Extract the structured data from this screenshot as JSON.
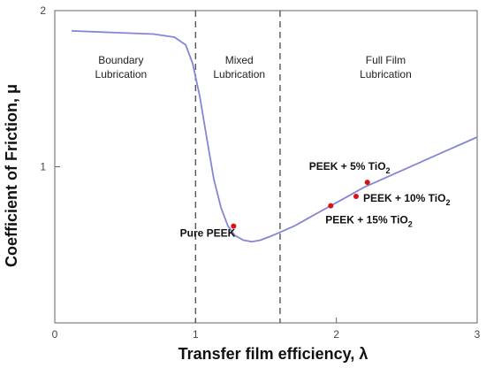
{
  "chart_data": {
    "type": "line",
    "xlabel": "Transfer film efficiency, λ",
    "ylabel": "Coefficient of Friction, μ",
    "xlim": [
      0,
      3
    ],
    "ylim": [
      0,
      2
    ],
    "x_ticks": [
      "0",
      "1",
      "2",
      "3"
    ],
    "y_ticks": [
      "1",
      "2"
    ],
    "grid": false,
    "colors": {
      "curve": "#8585d6",
      "points": "#dd1111",
      "axis": "#666666",
      "boundary": "#555555"
    },
    "curve": {
      "x": [
        0.12,
        0.4,
        0.7,
        0.85,
        0.93,
        0.98,
        1.03,
        1.08,
        1.13,
        1.18,
        1.23,
        1.28,
        1.34,
        1.4,
        1.46,
        1.52,
        1.6,
        1.7,
        1.8,
        1.9,
        2.0,
        2.1,
        2.2,
        2.3,
        2.4,
        2.5,
        2.6,
        2.7,
        2.8,
        2.9,
        3.0
      ],
      "y": [
        1.87,
        1.86,
        1.85,
        1.83,
        1.78,
        1.66,
        1.45,
        1.18,
        0.92,
        0.74,
        0.62,
        0.56,
        0.53,
        0.52,
        0.53,
        0.55,
        0.58,
        0.62,
        0.67,
        0.72,
        0.77,
        0.82,
        0.87,
        0.91,
        0.95,
        0.99,
        1.03,
        1.07,
        1.11,
        1.15,
        1.19
      ]
    },
    "regions": [
      {
        "lines": [
          "Boundary",
          "Lubrication"
        ],
        "x": 0.47
      },
      {
        "lines": [
          "Mixed",
          "Lubrication"
        ],
        "x": 1.31
      },
      {
        "lines": [
          "Full Film",
          "Lubrication"
        ],
        "x": 2.35
      }
    ],
    "boundaries_x": [
      1.0,
      1.6
    ],
    "points": [
      {
        "label": "Pure PEEK",
        "x": 1.27,
        "y": 0.62
      },
      {
        "label": "PEEK + 5% TiO2",
        "x": 2.22,
        "y": 0.9
      },
      {
        "label": "PEEK + 10% TiO2",
        "x": 2.14,
        "y": 0.81
      },
      {
        "label": "PEEK + 15% TiO2",
        "x": 1.96,
        "y": 0.75
      }
    ]
  }
}
